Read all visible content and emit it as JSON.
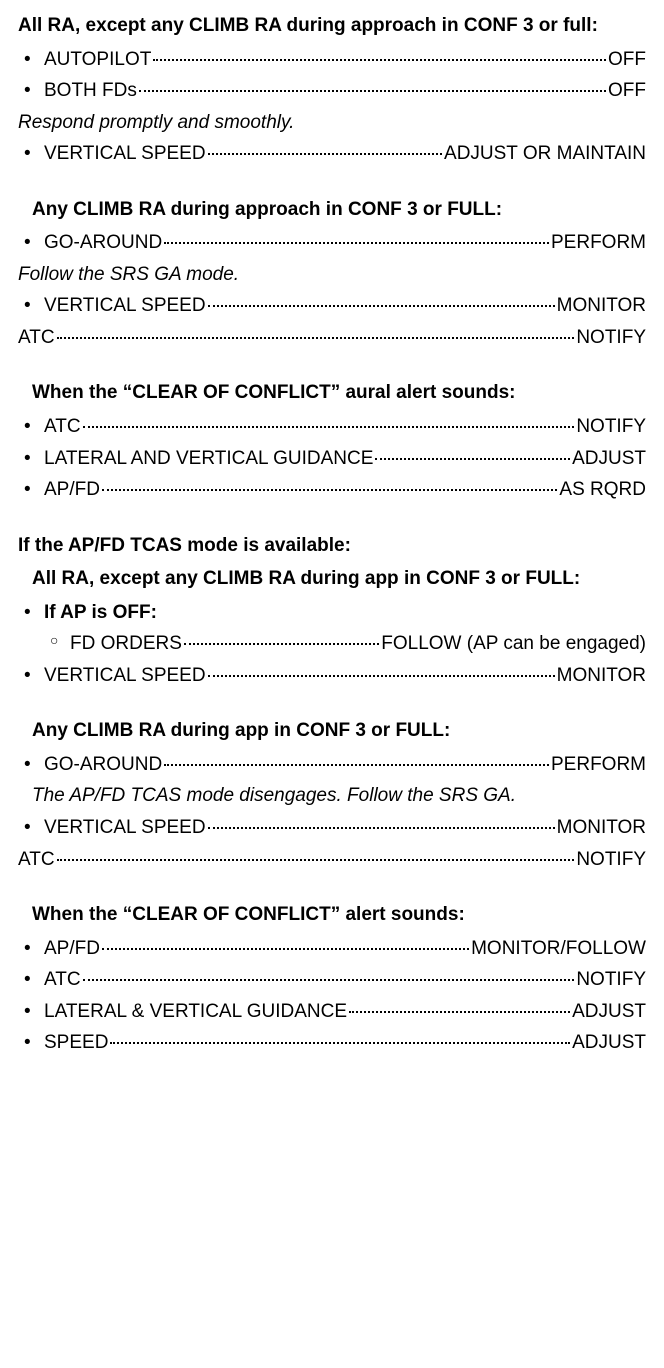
{
  "s1": {
    "heading": "All RA, except any CLIMB RA during approach in CONF 3 or full:",
    "items": [
      {
        "label": "AUTOPILOT",
        "value": "OFF"
      },
      {
        "label": "BOTH FDs",
        "value": "OFF"
      }
    ],
    "note": "Respond promptly and smoothly.",
    "items2": [
      {
        "label": "VERTICAL SPEED",
        "value": "ADJUST OR MAINTAIN"
      }
    ]
  },
  "s2": {
    "heading": "Any CLIMB RA during approach in CONF 3 or FULL:",
    "items": [
      {
        "label": "GO-AROUND",
        "value": "PERFORM"
      }
    ],
    "note": "Follow the SRS GA mode.",
    "items2": [
      {
        "label": "VERTICAL SPEED",
        "value": "MONITOR"
      }
    ],
    "plain": {
      "label": "ATC",
      "value": "NOTIFY"
    }
  },
  "s3": {
    "heading": "When the “CLEAR OF CONFLICT” aural alert sounds:",
    "items": [
      {
        "label": "ATC",
        "value": "NOTIFY"
      },
      {
        "label": "LATERAL AND VERTICAL GUIDANCE",
        "value": "ADJUST"
      },
      {
        "label": "AP/FD",
        "value": "AS RQRD"
      }
    ]
  },
  "s4": {
    "heading0": "If the AP/FD TCAS mode is available:",
    "heading": "All RA, except any CLIMB RA during app in CONF 3 or FULL:",
    "cond": "If AP is OFF:",
    "sub": {
      "label": "FD ORDERS",
      "value": "FOLLOW (AP can be engaged)"
    },
    "items2": [
      {
        "label": "VERTICAL SPEED",
        "value": "MONITOR"
      }
    ]
  },
  "s5": {
    "heading": "Any CLIMB RA during app in CONF 3 or FULL:",
    "items": [
      {
        "label": "GO-AROUND",
        "value": "PERFORM"
      }
    ],
    "note": "The AP/FD TCAS mode disengages. Follow the SRS GA.",
    "items2": [
      {
        "label": "VERTICAL SPEED",
        "value": "MONITOR"
      }
    ],
    "plain": {
      "label": "ATC",
      "value": "NOTIFY"
    }
  },
  "s6": {
    "heading": "When the “CLEAR OF CONFLICT” alert sounds:",
    "items": [
      {
        "label": "AP/FD",
        "value": "MONITOR/FOLLOW"
      },
      {
        "label": "ATC",
        "value": "NOTIFY"
      },
      {
        "label": "LATERAL & VERTICAL GUIDANCE",
        "value": "ADJUST"
      },
      {
        "label": "SPEED",
        "value": "ADJUST"
      }
    ]
  }
}
